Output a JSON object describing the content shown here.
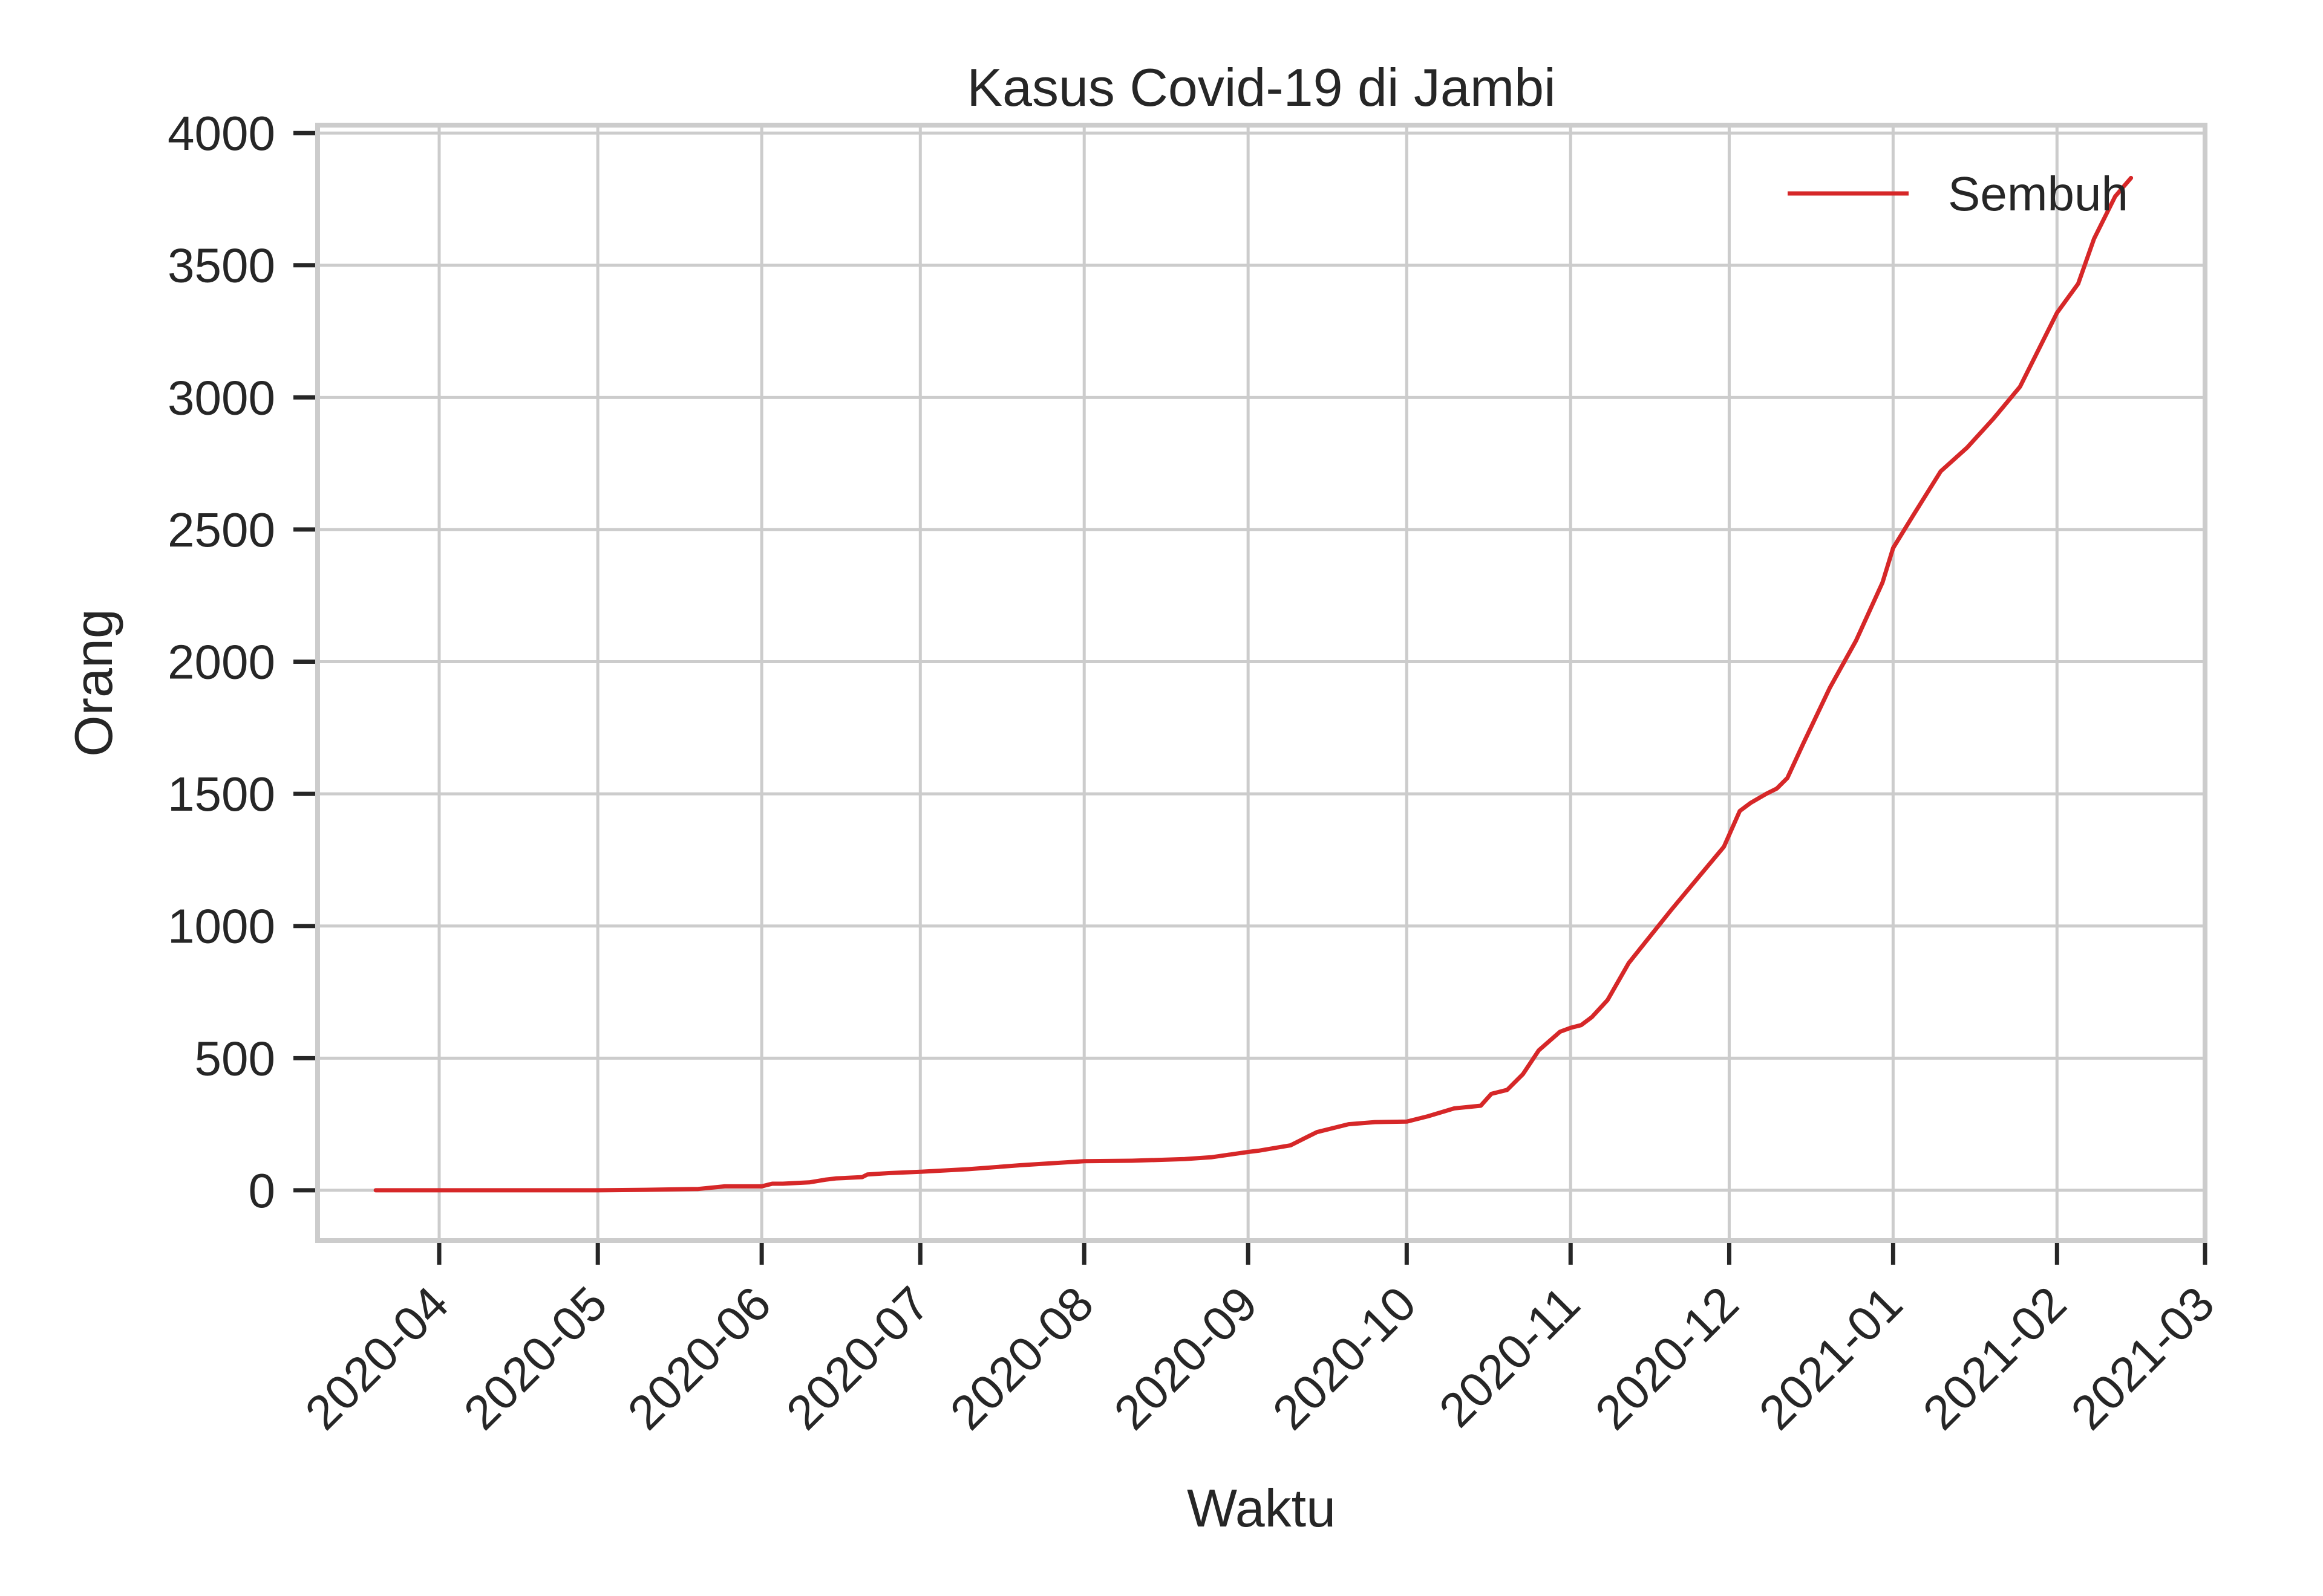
{
  "chart_data": {
    "type": "line",
    "title": "Kasus Covid-19 di Jambi",
    "xlabel": "Waktu",
    "ylabel": "Orang",
    "x_type": "date",
    "xlim": [
      "2020-03-09",
      "2021-03-01"
    ],
    "ylim": [
      -190,
      4030
    ],
    "grid": true,
    "legend_position": "top-right",
    "x_tick_labels": [
      "2020-04",
      "2020-05",
      "2020-06",
      "2020-07",
      "2020-08",
      "2020-09",
      "2020-10",
      "2020-11",
      "2020-12",
      "2021-01",
      "2021-02",
      "2021-03"
    ],
    "x_ticks": [
      "2020-04-01",
      "2020-05-01",
      "2020-06-01",
      "2020-07-01",
      "2020-08-01",
      "2020-09-01",
      "2020-10-01",
      "2020-11-01",
      "2020-12-01",
      "2021-01-01",
      "2021-02-01",
      "2021-03-01"
    ],
    "y_ticks": [
      0,
      500,
      1000,
      1500,
      2000,
      2500,
      3000,
      3500,
      4000
    ],
    "y_tick_labels": [
      "0",
      "500",
      "1000",
      "1500",
      "2000",
      "2500",
      "3000",
      "3500",
      "4000"
    ],
    "series": [
      {
        "name": "Sembuh",
        "color": "#d62728",
        "x": [
          "2020-03-20",
          "2020-04-01",
          "2020-04-15",
          "2020-05-01",
          "2020-05-10",
          "2020-05-20",
          "2020-05-25",
          "2020-06-01",
          "2020-06-03",
          "2020-06-05",
          "2020-06-10",
          "2020-06-13",
          "2020-06-15",
          "2020-06-20",
          "2020-06-21",
          "2020-06-25",
          "2020-07-01",
          "2020-07-10",
          "2020-07-20",
          "2020-08-01",
          "2020-08-10",
          "2020-08-20",
          "2020-08-25",
          "2020-09-01",
          "2020-09-03",
          "2020-09-09",
          "2020-09-10",
          "2020-09-14",
          "2020-09-20",
          "2020-09-25",
          "2020-10-01",
          "2020-10-05",
          "2020-10-10",
          "2020-10-15",
          "2020-10-17",
          "2020-10-20",
          "2020-10-23",
          "2020-10-26",
          "2020-10-30",
          "2020-11-01",
          "2020-11-03",
          "2020-11-05",
          "2020-11-08",
          "2020-11-12",
          "2020-11-15",
          "2020-11-20",
          "2020-11-25",
          "2020-11-30",
          "2020-12-03",
          "2020-12-05",
          "2020-12-08",
          "2020-12-10",
          "2020-12-12",
          "2020-12-15",
          "2020-12-20",
          "2020-12-25",
          "2020-12-30",
          "2021-01-01",
          "2021-01-05",
          "2021-01-10",
          "2021-01-15",
          "2021-01-20",
          "2021-01-25",
          "2021-02-01",
          "2021-02-05",
          "2021-02-08",
          "2021-02-12",
          "2021-02-15"
        ],
        "y": [
          0,
          0,
          0,
          0,
          2,
          5,
          15,
          15,
          25,
          25,
          30,
          40,
          45,
          50,
          60,
          65,
          70,
          80,
          95,
          110,
          112,
          118,
          125,
          145,
          150,
          170,
          180,
          220,
          250,
          258,
          260,
          280,
          310,
          320,
          365,
          380,
          440,
          530,
          600,
          615,
          625,
          655,
          720,
          860,
          935,
          1060,
          1180,
          1300,
          1435,
          1465,
          1500,
          1520,
          1560,
          1690,
          1900,
          2080,
          2300,
          2430,
          2560,
          2720,
          2810,
          2920,
          3040,
          3320,
          3430,
          3600,
          3760,
          3830
        ]
      }
    ]
  }
}
